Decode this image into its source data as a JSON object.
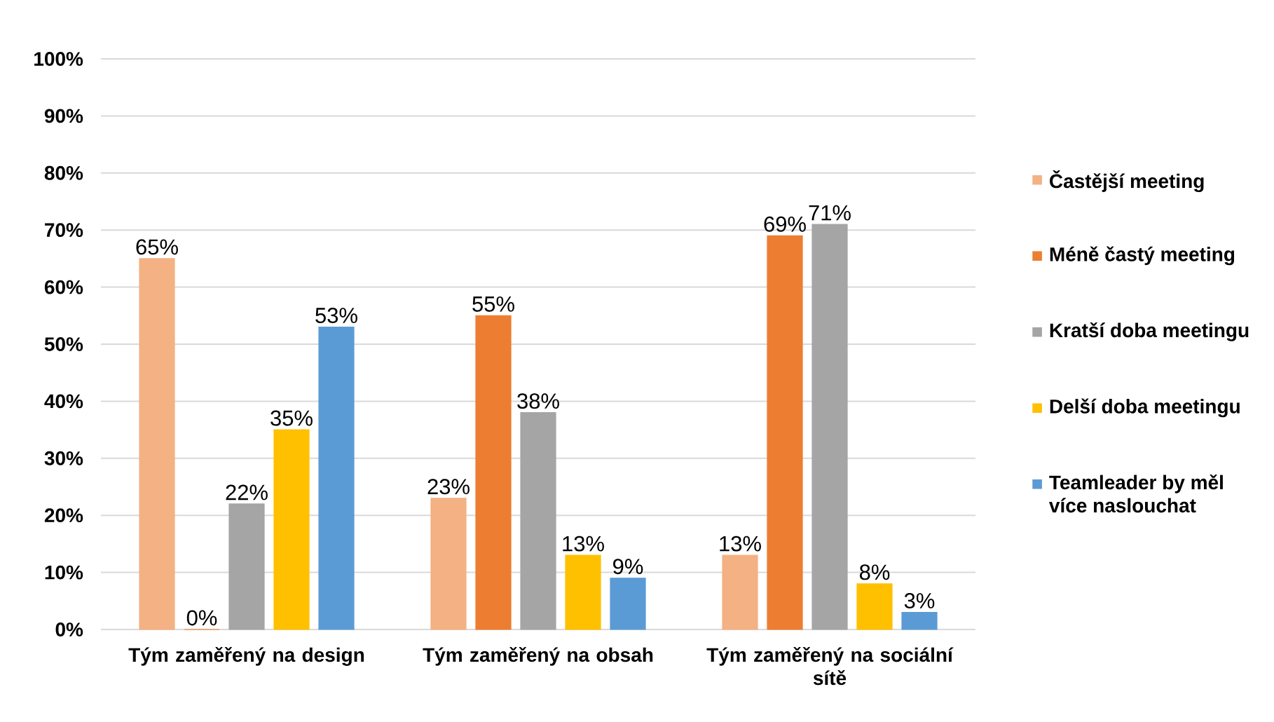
{
  "chart_data": {
    "type": "bar",
    "categories": [
      "Tým zaměřený na design",
      "Tým zaměřený na obsah",
      "Tým zaměřený na sociální sítě"
    ],
    "series": [
      {
        "name": "Častější meeting",
        "color": "#f4b183",
        "values": [
          65,
          23,
          13
        ],
        "value_labels": [
          "65%",
          "23%",
          "13%"
        ]
      },
      {
        "name": "Méně častý meeting",
        "color": "#ed7d31",
        "values": [
          0,
          55,
          69
        ],
        "value_labels": [
          "0%",
          "55%",
          "69%"
        ]
      },
      {
        "name": "Kratší doba meetingu",
        "color": "#a5a5a5",
        "values": [
          22,
          38,
          71
        ],
        "value_labels": [
          "22%",
          "38%",
          "71%"
        ]
      },
      {
        "name": "Delší doba meetingu",
        "color": "#ffc000",
        "values": [
          35,
          13,
          8
        ],
        "value_labels": [
          "35%",
          "13%",
          "8%"
        ]
      },
      {
        "name": "Teamleader by měl více naslouchat",
        "color": "#5b9bd5",
        "values": [
          53,
          9,
          3
        ],
        "value_labels": [
          "53%",
          "9%",
          "3%"
        ]
      }
    ],
    "ylim": [
      0,
      100
    ],
    "yticks": [
      {
        "value": 0,
        "label": "0%"
      },
      {
        "value": 10,
        "label": "10%"
      },
      {
        "value": 20,
        "label": "20%"
      },
      {
        "value": 30,
        "label": "30%"
      },
      {
        "value": 40,
        "label": "40%"
      },
      {
        "value": 50,
        "label": "50%"
      },
      {
        "value": 60,
        "label": "60%"
      },
      {
        "value": 70,
        "label": "70%"
      },
      {
        "value": 80,
        "label": "80%"
      },
      {
        "value": 90,
        "label": "90%"
      },
      {
        "value": 100,
        "label": "100%"
      }
    ],
    "grid": "y",
    "legend": "right"
  }
}
